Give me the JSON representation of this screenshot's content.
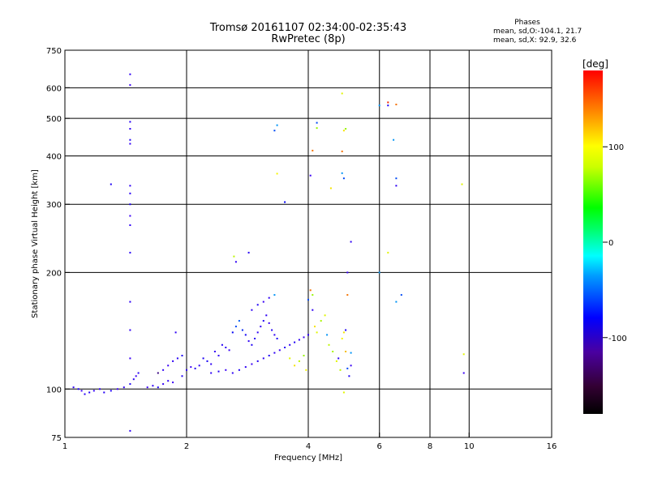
{
  "chart_data": {
    "type": "scatter",
    "title": "Tromsø 20161107 02:34:00-02:35:43",
    "subtitle": "RwPretec (8p)",
    "xlabel": "Frequency [MHz]",
    "ylabel": "Stationary phase Virtual Height [km]",
    "xscale": "log2",
    "yscale": "log",
    "xlim": [
      1,
      16
    ],
    "ylim": [
      75,
      750
    ],
    "xticks": [
      1,
      2,
      4,
      6,
      8,
      10,
      16
    ],
    "xtick_labels": [
      "1",
      "2",
      "4",
      "6",
      "8",
      "10",
      "16"
    ],
    "yticks": [
      75,
      100,
      200,
      300,
      400,
      500,
      600,
      750
    ],
    "ytick_labels": [
      "75",
      "100",
      "200",
      "300",
      "400",
      "500",
      "600",
      "750"
    ],
    "x_grid_lines": [
      2,
      4,
      6,
      8,
      10
    ],
    "y_grid_lines": [
      100,
      200,
      300,
      400,
      500,
      600
    ],
    "phases": {
      "heading": "Phases",
      "line_o": "mean, sd,O:-104.1, 21.7",
      "line_x": "mean, sd,X:  92.9, 32.6"
    },
    "colorbar": {
      "label": "[deg]",
      "range": [
        -180,
        180
      ],
      "ticks": [
        100,
        0,
        -100
      ],
      "tick_labels": [
        "100",
        "0",
        "-100"
      ]
    },
    "points": [
      [
        1.05,
        101,
        -110
      ],
      [
        1.08,
        100,
        -100
      ],
      [
        1.1,
        99,
        -120
      ],
      [
        1.12,
        97,
        -105
      ],
      [
        1.15,
        98,
        -100
      ],
      [
        1.18,
        99,
        -115
      ],
      [
        1.22,
        100,
        -110
      ],
      [
        1.25,
        98,
        -105
      ],
      [
        1.3,
        99,
        -100
      ],
      [
        1.35,
        100,
        -120
      ],
      [
        1.4,
        101,
        -110
      ],
      [
        1.45,
        103,
        -100
      ],
      [
        1.48,
        106,
        -110
      ],
      [
        1.5,
        108,
        -120
      ],
      [
        1.52,
        110,
        -105
      ],
      [
        1.45,
        650,
        -110
      ],
      [
        1.45,
        610,
        -120
      ],
      [
        1.45,
        490,
        -105
      ],
      [
        1.45,
        470,
        -110
      ],
      [
        1.45,
        440,
        -100
      ],
      [
        1.45,
        430,
        -115
      ],
      [
        1.45,
        335,
        -110
      ],
      [
        1.45,
        320,
        -105
      ],
      [
        1.45,
        300,
        -100
      ],
      [
        1.45,
        280,
        -120
      ],
      [
        1.45,
        265,
        -110
      ],
      [
        1.45,
        225,
        -105
      ],
      [
        1.45,
        168,
        -110
      ],
      [
        1.45,
        142,
        -115
      ],
      [
        1.45,
        120,
        -120
      ],
      [
        1.45,
        78,
        -110
      ],
      [
        1.3,
        338,
        -100
      ],
      [
        1.6,
        101,
        -120
      ],
      [
        1.65,
        102,
        -110
      ],
      [
        1.7,
        101,
        -100
      ],
      [
        1.75,
        103,
        -115
      ],
      [
        1.8,
        105,
        -110
      ],
      [
        1.85,
        104,
        -120
      ],
      [
        1.7,
        110,
        -150
      ],
      [
        1.75,
        112,
        -110
      ],
      [
        1.8,
        115,
        -120
      ],
      [
        1.85,
        118,
        -110
      ],
      [
        1.9,
        120,
        -105
      ],
      [
        1.95,
        122,
        -100
      ],
      [
        1.88,
        140,
        -110
      ],
      [
        1.95,
        108,
        -100
      ],
      [
        2.0,
        112,
        -110
      ],
      [
        2.05,
        114,
        -120
      ],
      [
        2.1,
        113,
        -105
      ],
      [
        2.15,
        115,
        -110
      ],
      [
        2.2,
        120,
        -100
      ],
      [
        2.25,
        118,
        -95
      ],
      [
        2.3,
        116,
        -110
      ],
      [
        2.35,
        125,
        -115
      ],
      [
        2.4,
        122,
        -110
      ],
      [
        2.45,
        130,
        -105
      ],
      [
        2.5,
        128,
        -110
      ],
      [
        2.55,
        126,
        -120
      ],
      [
        2.6,
        140,
        -80
      ],
      [
        2.65,
        145,
        -60
      ],
      [
        2.7,
        150,
        -55
      ],
      [
        2.75,
        142,
        -70
      ],
      [
        2.8,
        138,
        -90
      ],
      [
        2.85,
        133,
        -110
      ],
      [
        2.9,
        130,
        -100
      ],
      [
        2.95,
        135,
        -105
      ],
      [
        3.0,
        140,
        -110
      ],
      [
        3.05,
        145,
        -115
      ],
      [
        3.1,
        150,
        -100
      ],
      [
        3.15,
        155,
        -110
      ],
      [
        3.2,
        148,
        -120
      ],
      [
        3.25,
        142,
        -105
      ],
      [
        3.3,
        138,
        -110
      ],
      [
        3.35,
        135,
        -100
      ],
      [
        2.3,
        110,
        -110
      ],
      [
        2.4,
        111,
        -105
      ],
      [
        2.5,
        112,
        -120
      ],
      [
        2.6,
        110,
        -110
      ],
      [
        2.7,
        112,
        -100
      ],
      [
        2.8,
        114,
        -110
      ],
      [
        2.9,
        116,
        -120
      ],
      [
        3.0,
        118,
        -105
      ],
      [
        3.1,
        120,
        -110
      ],
      [
        3.2,
        122,
        -100
      ],
      [
        3.3,
        124,
        -110
      ],
      [
        3.4,
        126,
        -120
      ],
      [
        3.5,
        128,
        -105
      ],
      [
        3.6,
        130,
        -110
      ],
      [
        3.7,
        132,
        -100
      ],
      [
        3.8,
        134,
        -110
      ],
      [
        3.9,
        136,
        -120
      ],
      [
        4.0,
        138,
        -110
      ],
      [
        2.62,
        220,
        100
      ],
      [
        2.65,
        213,
        -110
      ],
      [
        2.85,
        225,
        -105
      ],
      [
        3.5,
        304,
        -80
      ],
      [
        3.35,
        360,
        115
      ],
      [
        3.35,
        480,
        -40
      ],
      [
        3.3,
        465,
        -60
      ],
      [
        3.3,
        175,
        -40
      ],
      [
        3.2,
        172,
        -110
      ],
      [
        3.1,
        168,
        -120
      ],
      [
        3.0,
        165,
        -100
      ],
      [
        2.9,
        160,
        -110
      ],
      [
        3.6,
        120,
        110
      ],
      [
        3.7,
        115,
        120
      ],
      [
        3.8,
        118,
        100
      ],
      [
        3.9,
        122,
        90
      ],
      [
        3.95,
        112,
        115
      ],
      [
        4.0,
        170,
        -60
      ],
      [
        4.05,
        180,
        150
      ],
      [
        4.1,
        175,
        90
      ],
      [
        4.1,
        160,
        -110
      ],
      [
        4.15,
        145,
        120
      ],
      [
        4.2,
        140,
        110
      ],
      [
        4.3,
        150,
        95
      ],
      [
        4.4,
        155,
        110
      ],
      [
        4.45,
        138,
        -40
      ],
      [
        4.5,
        130,
        100
      ],
      [
        4.6,
        125,
        95
      ],
      [
        4.7,
        118,
        110
      ],
      [
        4.75,
        120,
        -110
      ],
      [
        4.8,
        112,
        100
      ],
      [
        4.85,
        135,
        115
      ],
      [
        4.9,
        140,
        120
      ],
      [
        4.95,
        125,
        130
      ],
      [
        5.0,
        113,
        -60
      ],
      [
        5.05,
        108,
        -100
      ],
      [
        4.2,
        472,
        90
      ],
      [
        4.2,
        487,
        -60
      ],
      [
        4.1,
        413,
        150
      ],
      [
        4.05,
        356,
        -120
      ],
      [
        4.55,
        330,
        120
      ],
      [
        4.85,
        361,
        -40
      ],
      [
        4.9,
        350,
        -60
      ],
      [
        4.9,
        465,
        120
      ],
      [
        4.85,
        411,
        150
      ],
      [
        4.95,
        470,
        90
      ],
      [
        4.85,
        580,
        110
      ],
      [
        5.1,
        240,
        -110
      ],
      [
        5.0,
        200,
        -120
      ],
      [
        5.0,
        175,
        150
      ],
      [
        4.9,
        98,
        110
      ],
      [
        5.1,
        124,
        -40
      ],
      [
        5.1,
        115,
        -120
      ],
      [
        4.95,
        142,
        -100
      ],
      [
        6.0,
        540,
        -40
      ],
      [
        6.0,
        200,
        -40
      ],
      [
        6.3,
        550,
        170
      ],
      [
        6.3,
        540,
        -100
      ],
      [
        6.6,
        543,
        150
      ],
      [
        6.5,
        440,
        -40
      ],
      [
        6.6,
        350,
        -60
      ],
      [
        6.6,
        335,
        -110
      ],
      [
        6.6,
        168,
        -40
      ],
      [
        6.3,
        225,
        110
      ],
      [
        6.8,
        175,
        -60
      ],
      [
        9.6,
        338,
        110
      ],
      [
        9.7,
        123,
        110
      ],
      [
        9.7,
        110,
        -120
      ]
    ]
  }
}
